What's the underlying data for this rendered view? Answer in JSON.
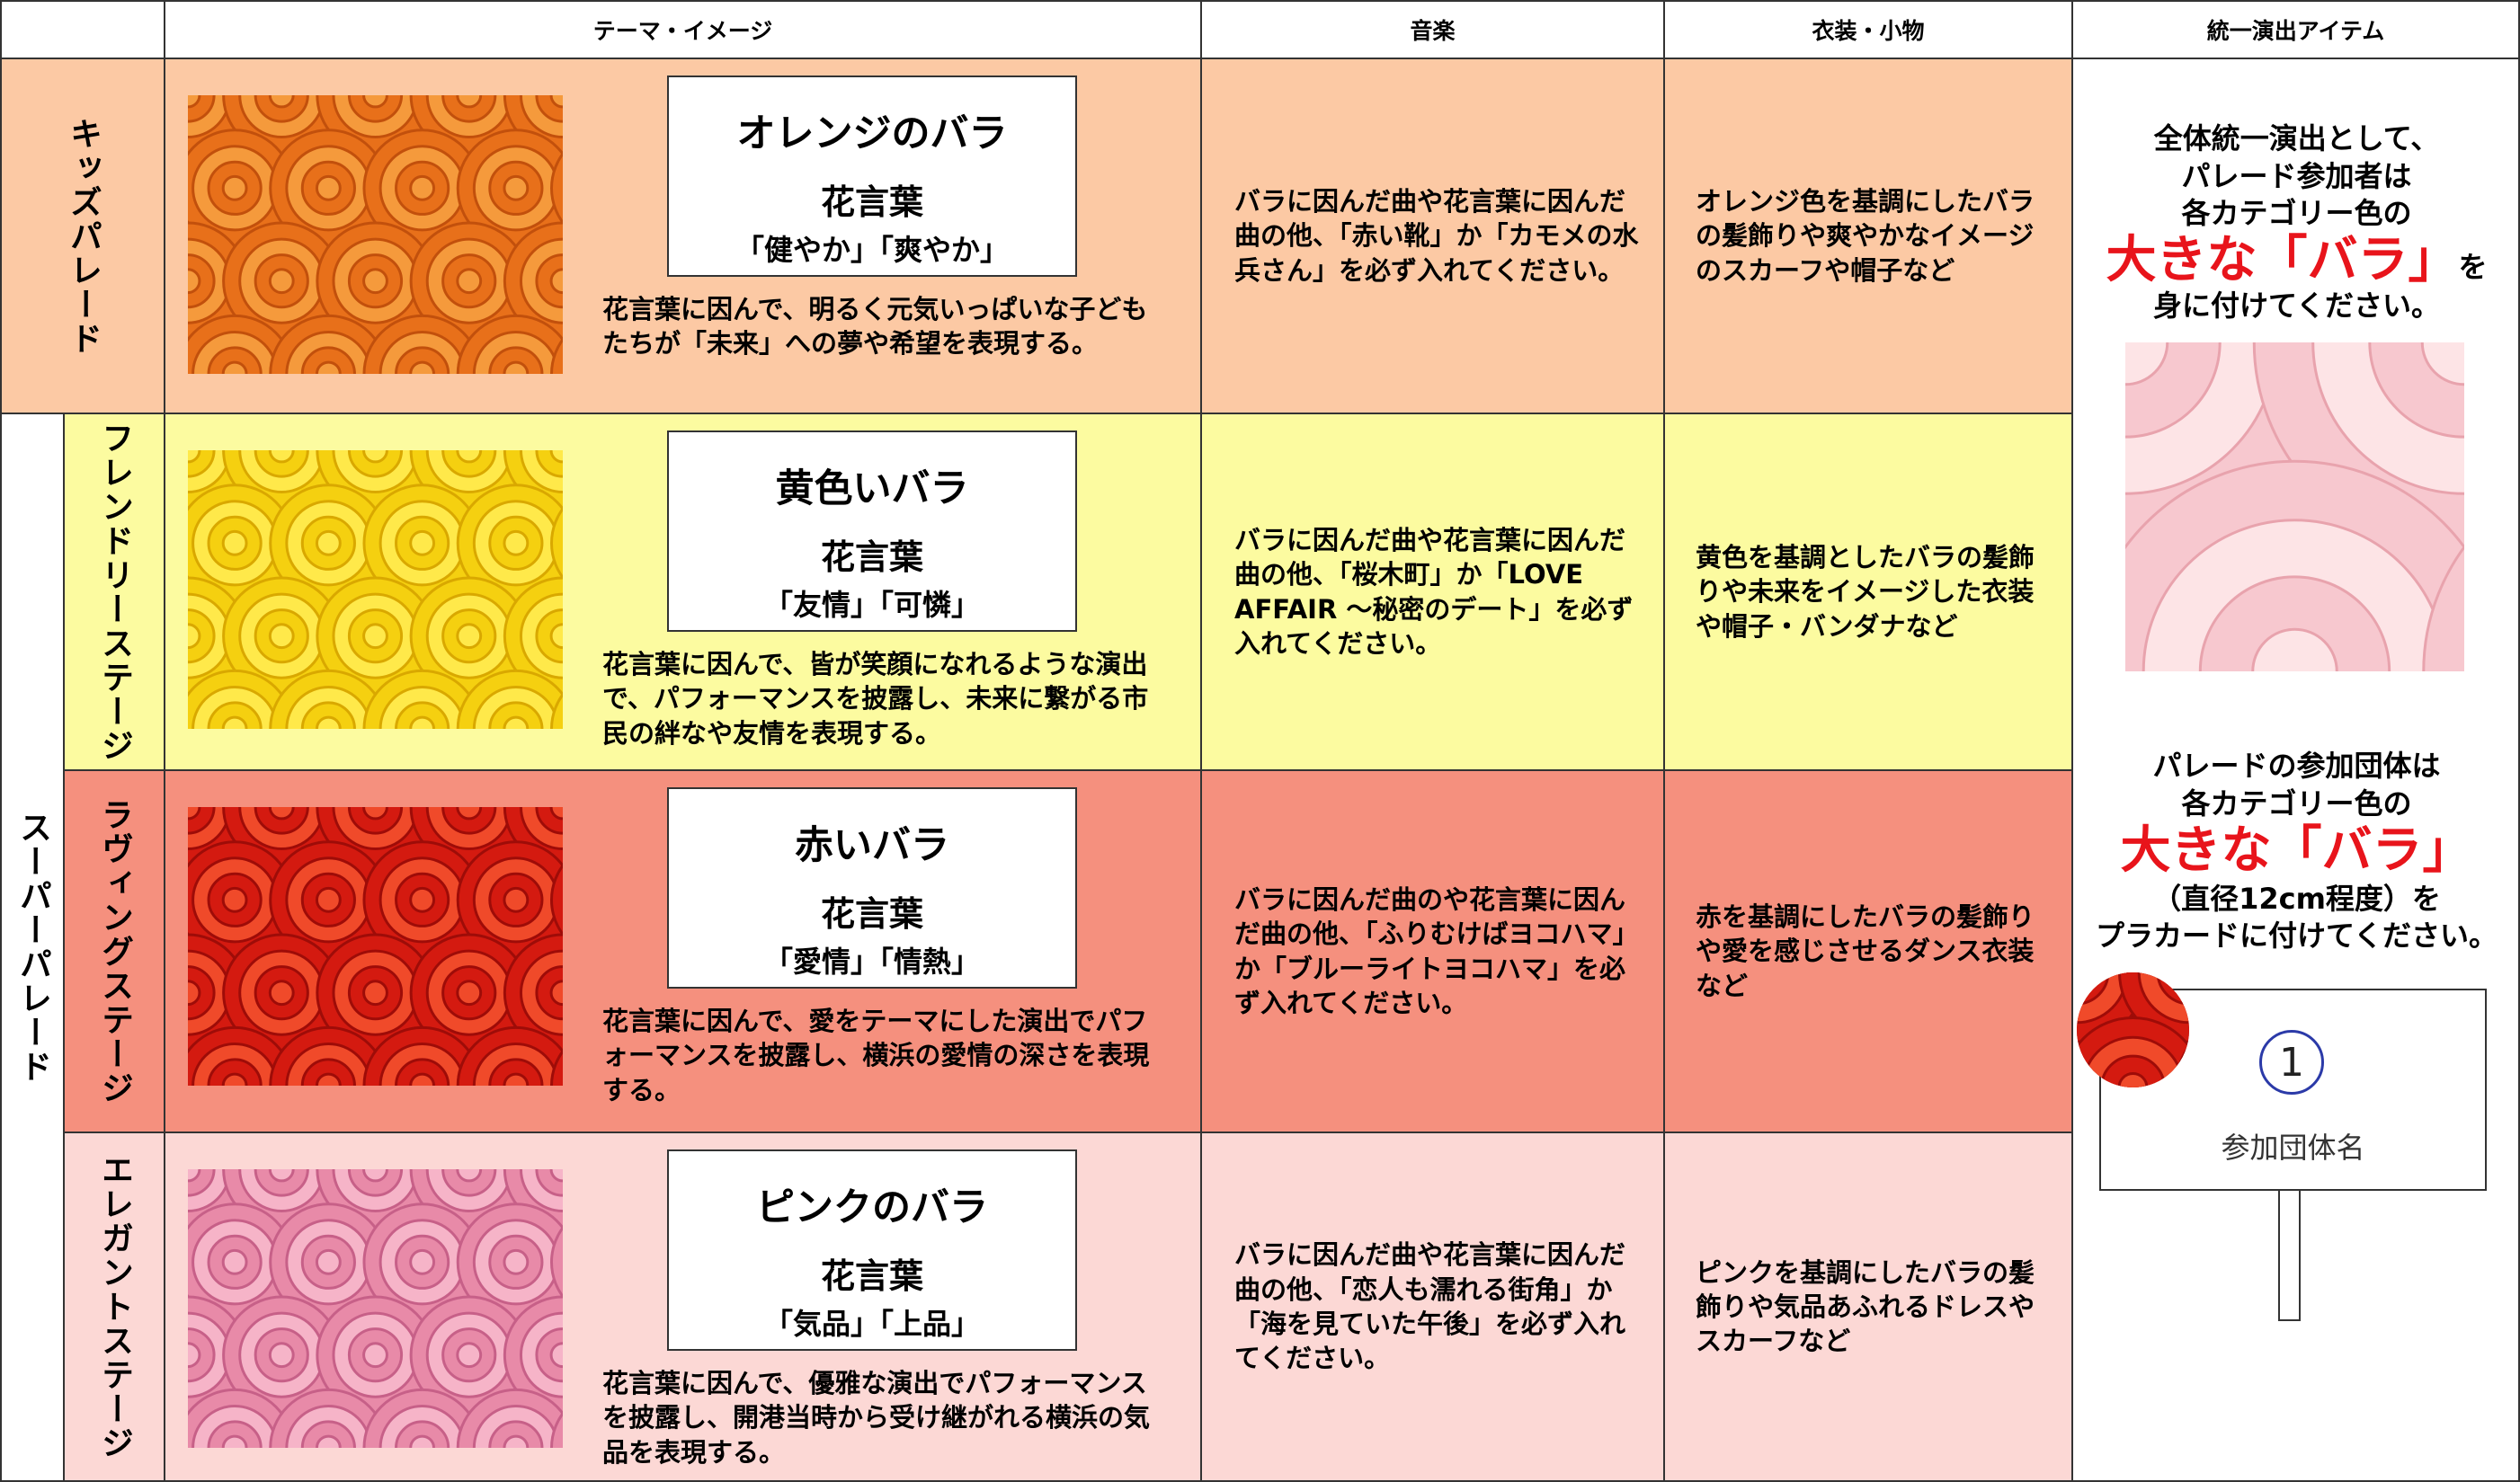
{
  "header": [
    "テーマ・イメージ",
    "音楽",
    "衣装・小物",
    "統一演出アイテム"
  ],
  "group_label": "スーパーパレード",
  "rows": [
    {
      "label": [
        "キッズパレード"
      ],
      "color": "#fcc9a4",
      "rose": "オレンジのバラ",
      "hanakotoba_title": "花言葉",
      "hanakotoba": "「健やか」「爽やか」",
      "description": "花言葉に因んで、明るく元気いっぱいな子どもたちが「未来」への夢や希望を表現する。",
      "music": "バラに因んだ曲や花言葉に因んだ曲の他、「赤い靴」か「カモメの水兵さん」を必ず入れてください。",
      "costume": "オレンジ色を基調にしたバラの髪飾りや爽やかなイメージのスカーフや帽子など"
    },
    {
      "label": [
        "フレンドリー",
        "ステージ"
      ],
      "color": "#fcfba0",
      "rose": "黄色いバラ",
      "hanakotoba_title": "花言葉",
      "hanakotoba": "「友情」「可憐」",
      "description": "花言葉に因んで、皆が笑顔になれるような演出で、パフォーマンスを披露し、未来に繋がる市民の絆なや友情を表現する。",
      "music": "バラに因んだ曲や花言葉に因んだ曲の他、「桜木町」か「LOVE AFFAIR ～秘密のデート」を必ず入れてください。",
      "costume": "黄色を基調としたバラの髪飾りや未来をイメージした衣装や帽子・バンダナなど"
    },
    {
      "label": [
        "ラヴィング",
        "ステージ"
      ],
      "color": "#f5907e",
      "rose": "赤いバラ",
      "hanakotoba_title": "花言葉",
      "hanakotoba": "「愛情」「情熱」",
      "description": "花言葉に因んで、愛をテーマにした演出でパフォーマンスを披露し、横浜の愛情の深さを表現する。",
      "music": "バラに因んだ曲のや花言葉に因んだ曲の他、「ふりむけばヨコハマ」か「ブルーライトヨコハマ」を必ず入れてください。",
      "costume": "赤を基調にしたバラの髪飾りや愛を感じさせるダンス衣装など"
    },
    {
      "label": [
        "エレガント",
        "ステージ"
      ],
      "color": "#fcd8d5",
      "rose": "ピンクのバラ",
      "hanakotoba_title": "花言葉",
      "hanakotoba": "「気品」「上品」",
      "description": "花言葉に因んで、優雅な演出でパフォーマンスを披露し、開港当時から受け継がれる横浜の気品を表現する。",
      "music": "バラに因んだ曲や花言葉に因んだ曲の他、「恋人も濡れる街角」か「海を見ていた午後」を必ず入れてください。",
      "costume": "ピンクを基調にしたバラの髪飾りや気品あふれるドレスやスカーフなど"
    }
  ],
  "unified": {
    "intro": [
      "全体統一演出として、",
      "パレード参加者は",
      "各カテゴリー色の"
    ],
    "highlight": "大きな「バラ」",
    "highlight_suffix": "を",
    "outro": "身に付けてください。",
    "intro2": [
      "パレードの参加団体は",
      "各カテゴリー色の"
    ],
    "highlight2": "大きな「バラ」",
    "outro2": [
      "（直径12cm程度）を",
      "プラカードに付けてください。"
    ],
    "placard_number": "1",
    "placard_name": "参加団体名"
  }
}
